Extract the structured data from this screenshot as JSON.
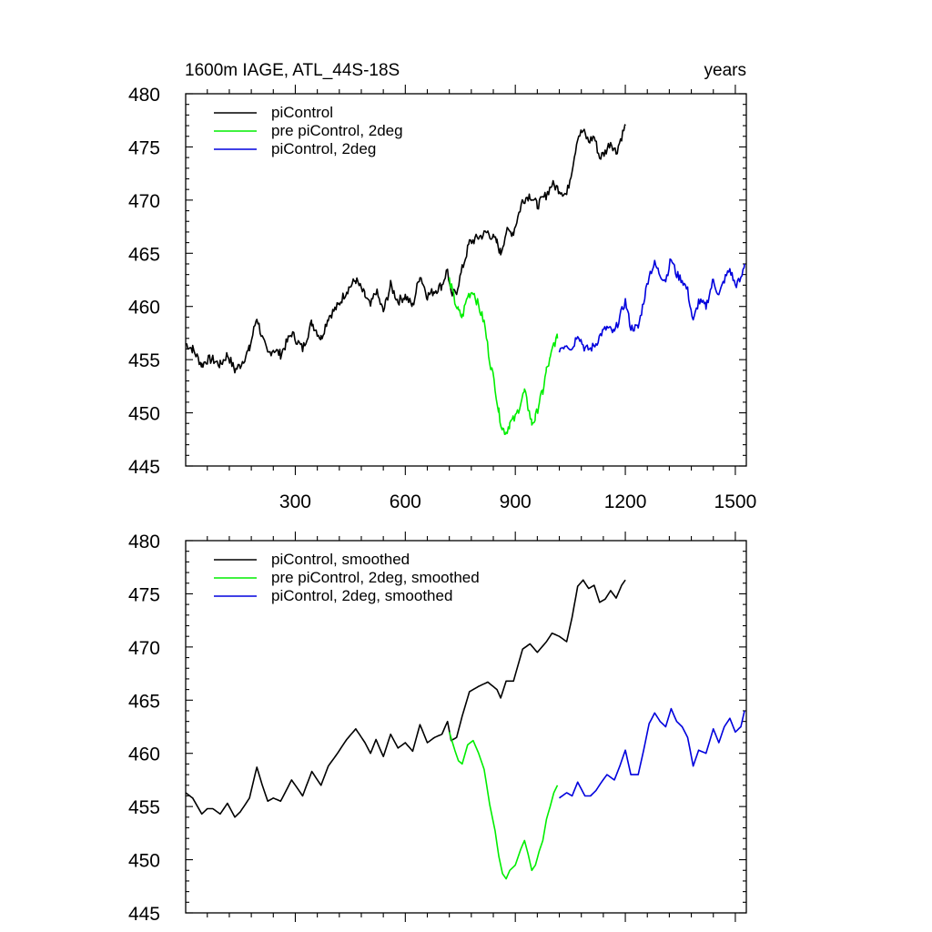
{
  "figure": {
    "title_left": "1600m IAGE, ATL_44S-18S",
    "title_right": "years"
  },
  "colors": {
    "piControl": "#000000",
    "pre_2deg": "#00ee00",
    "piControl_2deg": "#0000dd"
  },
  "chart_data": [
    {
      "type": "line",
      "panel": "top",
      "title": "1600m IAGE, ATL_44S-18S",
      "xlabel": "years",
      "ylabel": "",
      "xlim": [
        1,
        1530
      ],
      "ylim": [
        445,
        480
      ],
      "x_ticks": [
        300,
        600,
        900,
        1200,
        1500
      ],
      "x_tick_labels": [
        "300",
        "600",
        "900",
        "1200",
        "1500"
      ],
      "y_ticks": [
        445,
        450,
        455,
        460,
        465,
        470,
        475,
        480
      ],
      "y_tick_labels": [
        "445",
        "450",
        "455",
        "460",
        "465",
        "470",
        "475",
        "480"
      ],
      "legend": [
        "piControl",
        "pre piControl, 2deg",
        "piControl, 2deg"
      ],
      "legend_position": "top-left",
      "series": [
        {
          "name": "piControl",
          "color_key": "piControl",
          "noise": 0.45,
          "x": [
            1,
            20,
            45,
            60,
            75,
            95,
            115,
            135,
            150,
            175,
            195,
            210,
            225,
            240,
            260,
            290,
            320,
            345,
            370,
            390,
            415,
            440,
            465,
            490,
            505,
            520,
            540,
            560,
            580,
            600,
            620,
            640,
            660,
            680,
            700,
            715,
            725,
            740,
            755,
            775,
            800,
            825,
            850,
            860,
            875,
            895,
            920,
            940,
            960,
            985,
            1000,
            1020,
            1040,
            1055,
            1070,
            1085,
            1100,
            1115,
            1130,
            1145,
            1160,
            1175,
            1190,
            1200
          ],
          "y": [
            456.5,
            456.0,
            454.5,
            455.0,
            455.0,
            454.5,
            455.5,
            454.0,
            454.5,
            456.0,
            459.0,
            457.0,
            455.5,
            456.0,
            455.5,
            457.5,
            456.0,
            458.5,
            457.0,
            459.0,
            460.0,
            461.5,
            462.5,
            461.0,
            460.0,
            461.5,
            459.5,
            462.0,
            460.5,
            461.0,
            460.0,
            463.0,
            461.0,
            461.5,
            462.0,
            463.5,
            461.0,
            461.5,
            463.5,
            466.0,
            466.5,
            467.0,
            466.0,
            465.0,
            467.0,
            467.0,
            470.0,
            470.5,
            469.5,
            470.5,
            471.5,
            471.0,
            470.5,
            473.0,
            476.0,
            476.5,
            475.5,
            476.0,
            474.0,
            474.5,
            475.5,
            474.5,
            476.0,
            477.0
          ]
        },
        {
          "name": "pre piControl, 2deg",
          "color_key": "pre_2deg",
          "noise": 0.45,
          "x": [
            720,
            735,
            745,
            755,
            770,
            785,
            800,
            815,
            830,
            845,
            855,
            865,
            875,
            885,
            900,
            915,
            925,
            935,
            945,
            955,
            965,
            975,
            985,
            995,
            1005,
            1015
          ],
          "y": [
            462.5,
            460.5,
            459.5,
            459.0,
            461.0,
            461.5,
            460.0,
            458.5,
            455.0,
            452.5,
            450.0,
            448.5,
            448.2,
            449.0,
            449.5,
            451.0,
            452.0,
            450.5,
            449.0,
            449.5,
            451.0,
            452.0,
            454.0,
            455.0,
            456.5,
            457.0
          ]
        },
        {
          "name": "piControl, 2deg",
          "color_key": "piControl_2deg",
          "noise": 0.4,
          "x": [
            1020,
            1040,
            1055,
            1070,
            1090,
            1105,
            1120,
            1135,
            1150,
            1170,
            1185,
            1200,
            1215,
            1235,
            1250,
            1265,
            1280,
            1295,
            1310,
            1325,
            1340,
            1355,
            1370,
            1385,
            1400,
            1420,
            1440,
            1455,
            1470,
            1485,
            1500,
            1515,
            1525
          ],
          "y": [
            456.0,
            456.5,
            456.0,
            457.5,
            456.0,
            456.0,
            456.5,
            457.5,
            458.0,
            457.5,
            459.0,
            460.5,
            458.0,
            458.0,
            460.5,
            463.0,
            464.0,
            463.0,
            462.5,
            464.5,
            463.0,
            462.5,
            461.5,
            458.5,
            460.5,
            460.0,
            462.5,
            461.0,
            462.5,
            463.5,
            462.0,
            462.5,
            464.0
          ]
        }
      ]
    },
    {
      "type": "line",
      "panel": "bottom",
      "title": "",
      "xlabel": "",
      "ylabel": "",
      "xlim": [
        1,
        1530
      ],
      "ylim": [
        445,
        480
      ],
      "x_ticks": [
        300,
        600,
        900,
        1200,
        1500
      ],
      "x_tick_labels": [],
      "y_ticks": [
        445,
        450,
        455,
        460,
        465,
        470,
        475,
        480
      ],
      "y_tick_labels": [
        "445",
        "450",
        "455",
        "460",
        "465",
        "470",
        "475",
        "480"
      ],
      "legend": [
        "piControl, smoothed",
        "pre piControl, 2deg, smoothed",
        "piControl, 2deg, smoothed"
      ],
      "legend_position": "top-left",
      "series": [
        {
          "name": "piControl, smoothed",
          "color_key": "piControl",
          "noise": 0.0,
          "x": [
            1,
            20,
            45,
            60,
            75,
            95,
            115,
            135,
            150,
            175,
            195,
            210,
            225,
            240,
            260,
            290,
            320,
            345,
            370,
            390,
            415,
            440,
            465,
            490,
            505,
            520,
            540,
            560,
            580,
            600,
            620,
            640,
            660,
            680,
            700,
            715,
            725,
            740,
            755,
            775,
            800,
            825,
            850,
            860,
            875,
            895,
            920,
            940,
            960,
            985,
            1000,
            1020,
            1040,
            1055,
            1070,
            1085,
            1100,
            1115,
            1130,
            1145,
            1160,
            1175,
            1190,
            1200
          ],
          "y": [
            456.3,
            455.8,
            454.3,
            454.8,
            454.8,
            454.3,
            455.3,
            454.0,
            454.5,
            455.8,
            458.7,
            457.0,
            455.5,
            455.8,
            455.5,
            457.5,
            456.0,
            458.3,
            457.0,
            458.8,
            460.0,
            461.3,
            462.3,
            461.0,
            460.0,
            461.3,
            459.7,
            461.8,
            460.5,
            461.0,
            460.2,
            462.7,
            461.0,
            461.5,
            461.8,
            463.0,
            461.2,
            461.5,
            463.5,
            465.8,
            466.3,
            466.7,
            466.0,
            465.2,
            466.8,
            466.8,
            469.8,
            470.3,
            469.5,
            470.5,
            471.3,
            471.0,
            470.5,
            472.8,
            475.7,
            476.3,
            475.5,
            475.8,
            474.2,
            474.5,
            475.3,
            474.6,
            475.8,
            476.3
          ]
        },
        {
          "name": "pre piControl, 2deg, smoothed",
          "color_key": "pre_2deg",
          "noise": 0.0,
          "x": [
            720,
            735,
            745,
            755,
            770,
            785,
            800,
            815,
            830,
            845,
            855,
            865,
            875,
            885,
            900,
            915,
            925,
            935,
            945,
            955,
            965,
            975,
            985,
            995,
            1005,
            1015
          ],
          "y": [
            462.0,
            460.3,
            459.3,
            459.0,
            460.8,
            461.2,
            460.0,
            458.5,
            455.2,
            452.7,
            450.3,
            448.7,
            448.2,
            449.0,
            449.5,
            451.0,
            451.8,
            450.5,
            449.0,
            449.5,
            450.8,
            451.8,
            453.8,
            455.0,
            456.3,
            457.0
          ]
        },
        {
          "name": "piControl, 2deg, smoothed",
          "color_key": "piControl_2deg",
          "noise": 0.0,
          "x": [
            1020,
            1040,
            1055,
            1070,
            1090,
            1105,
            1120,
            1135,
            1150,
            1170,
            1185,
            1200,
            1215,
            1235,
            1250,
            1265,
            1280,
            1295,
            1310,
            1325,
            1340,
            1355,
            1370,
            1385,
            1400,
            1420,
            1440,
            1455,
            1470,
            1485,
            1500,
            1515,
            1525
          ],
          "y": [
            455.8,
            456.3,
            456.0,
            457.3,
            456.0,
            456.0,
            456.5,
            457.3,
            458.0,
            457.5,
            458.8,
            460.3,
            458.0,
            458.0,
            460.3,
            462.8,
            463.8,
            463.0,
            462.5,
            464.2,
            463.0,
            462.5,
            461.5,
            458.8,
            460.3,
            460.0,
            462.3,
            461.0,
            462.5,
            463.3,
            462.0,
            462.5,
            464.0
          ]
        }
      ]
    }
  ]
}
